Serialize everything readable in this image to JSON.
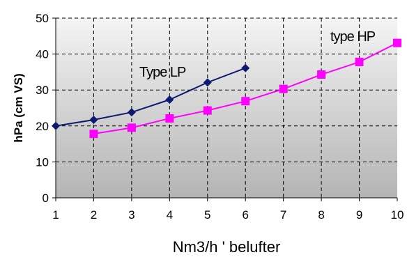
{
  "chart_data": {
    "type": "line",
    "xlabel": "Nm3/h ' belufter",
    "ylabel": "hPa (cm VS)",
    "xlim": [
      1,
      10
    ],
    "ylim": [
      0,
      50
    ],
    "x_ticks": [
      "1",
      "2",
      "3",
      "4",
      "5",
      "6",
      "7",
      "8",
      "9",
      "10"
    ],
    "y_ticks": [
      "0",
      "10",
      "20",
      "30",
      "40",
      "50"
    ],
    "grid": true,
    "grid_style": "dashed",
    "background": "vertical gradient, light grey at top to darker grey at bottom",
    "series": [
      {
        "name": "Type LP",
        "color": "#0d1a70",
        "marker": "diamond",
        "x": [
          1,
          2,
          3,
          4,
          5,
          6
        ],
        "values": [
          20,
          21.7,
          23.8,
          27.3,
          32.1,
          36.1
        ]
      },
      {
        "name": "type HP",
        "color": "#ff00ff",
        "marker": "square",
        "x": [
          2,
          3,
          4,
          5,
          6,
          7,
          8,
          9,
          10
        ],
        "values": [
          17.8,
          19.5,
          22.1,
          24.3,
          26.9,
          30.3,
          34.3,
          37.8,
          43.1
        ]
      }
    ]
  }
}
